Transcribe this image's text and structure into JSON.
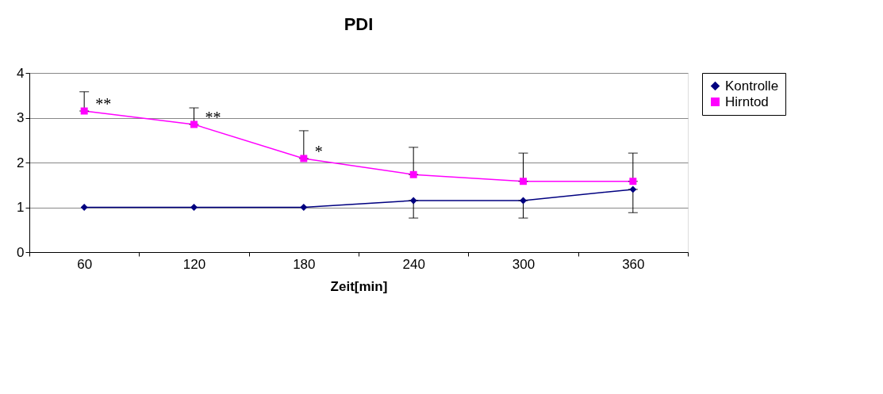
{
  "chart_data": {
    "type": "line",
    "title": "PDI",
    "xlabel": "Zeit[min]",
    "categories": [
      "60",
      "120",
      "180",
      "240",
      "300",
      "360"
    ],
    "series": [
      {
        "name": "Kontrolle",
        "color": "#000080",
        "marker": "diamond",
        "values": [
          1,
          1,
          1,
          1.15,
          1.15,
          1.4
        ],
        "errors": [
          null,
          null,
          null,
          [
            0.76,
            1.15
          ],
          [
            0.76,
            1.15
          ],
          [
            0.88,
            1.4
          ]
        ]
      },
      {
        "name": "Hirntod",
        "color": "#ff00ff",
        "marker": "square",
        "values": [
          3.15,
          2.85,
          2.09,
          1.73,
          1.58,
          1.58
        ],
        "errors": [
          [
            3.15,
            3.58
          ],
          [
            2.85,
            3.22
          ],
          [
            2.09,
            2.71
          ],
          [
            1.73,
            2.34
          ],
          [
            1.58,
            2.21
          ],
          [
            1.58,
            2.21
          ]
        ]
      }
    ],
    "ylim": [
      0,
      4
    ],
    "yticks": [
      0,
      1,
      2,
      3,
      4
    ],
    "grid": "y",
    "legend": "right",
    "annotations": [
      {
        "text": "**",
        "x": "60",
        "y": 3.15
      },
      {
        "text": "**",
        "x": "120",
        "y": 2.85
      },
      {
        "text": "*",
        "x": "180",
        "y": 2.09
      }
    ]
  }
}
